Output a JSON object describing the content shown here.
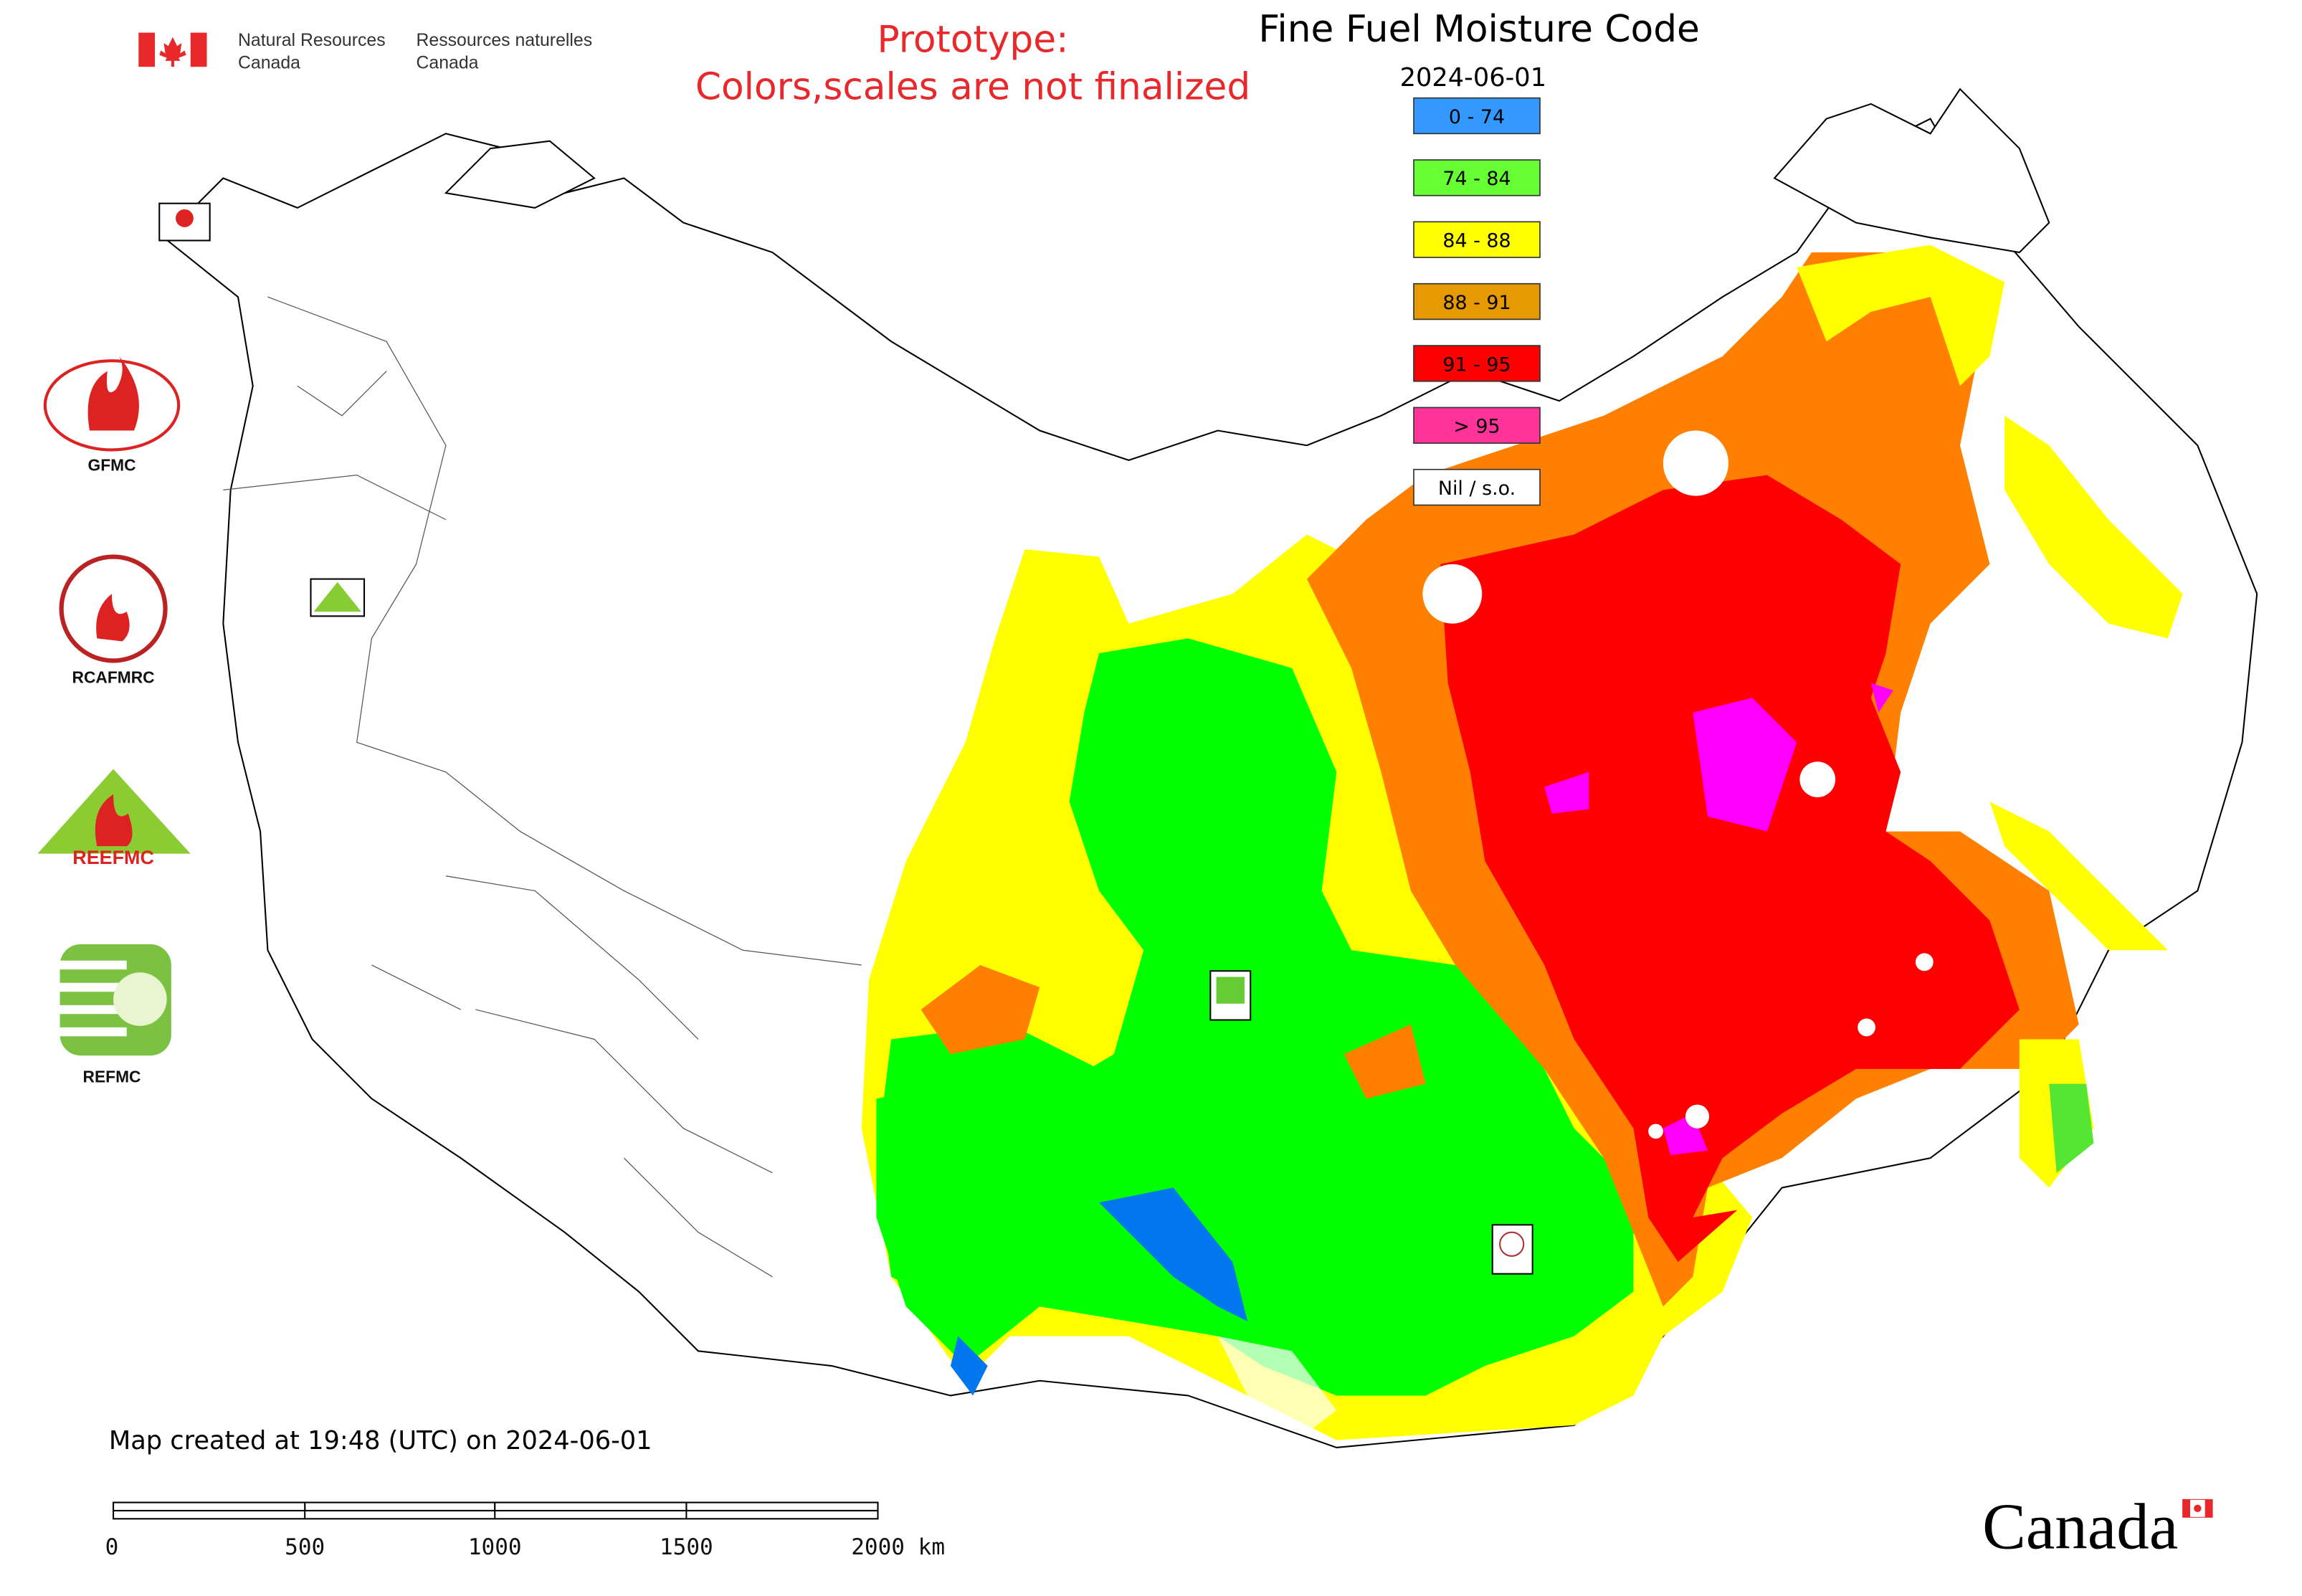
{
  "header": {
    "dept_en": [
      "Natural Resources",
      "Canada"
    ],
    "dept_fr": [
      "Ressources naturelles",
      "Canada"
    ]
  },
  "notice": [
    "Prototype:",
    "Colors,scales are not finalized"
  ],
  "title": "Fine Fuel Moisture Code",
  "date": "2024-06-01",
  "legend": [
    {
      "label": "0 - 74",
      "color": "#3399ff"
    },
    {
      "label": "74 - 84",
      "color": "#66ff33"
    },
    {
      "label": "84 - 88",
      "color": "#ffff00"
    },
    {
      "label": "88 - 91",
      "color": "#e69900"
    },
    {
      "label": "91 - 95",
      "color": "#ff0000"
    },
    {
      "label": "> 95",
      "color": "#ff3399"
    },
    {
      "label": "Nil / s.o.",
      "color": "#ffffff"
    }
  ],
  "logos": [
    "GFMC",
    "RCAFMRC",
    "REEFMC",
    "REFMC"
  ],
  "footer": "Map created at 19:48 (UTC) on 2024-06-01",
  "scale_bar": [
    "0",
    "500",
    "1000",
    "1500",
    "2000 km"
  ],
  "wordmark": "Canada"
}
